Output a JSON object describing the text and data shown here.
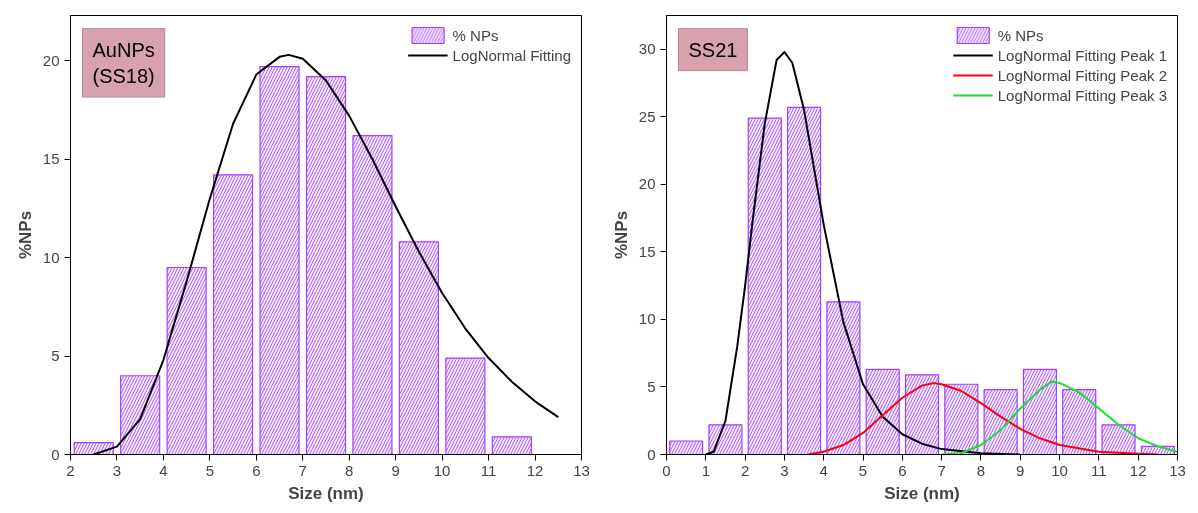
{
  "chart_data": [
    {
      "type": "histogram",
      "xlabel": "Size (nm)",
      "ylabel": "%NPs",
      "annotations": [
        "AuNPs\n(SS18)"
      ],
      "xlim": [
        2,
        13
      ],
      "xticks": [
        2,
        3,
        4,
        5,
        6,
        7,
        8,
        9,
        10,
        11,
        12,
        13
      ],
      "ylim": [
        0,
        22.3
      ],
      "yticks": [
        0,
        5,
        10,
        15,
        20
      ],
      "grid": false,
      "legend": "top right",
      "series": [
        {
          "name": "% NPs",
          "type": "histogram",
          "color": "#a040ff",
          "bins": [
            2,
            3,
            4,
            5,
            6,
            7,
            8,
            9,
            10,
            11,
            12
          ],
          "values": [
            0.6,
            4.0,
            9.5,
            14.2,
            19.7,
            19.2,
            16.2,
            10.8,
            4.9,
            0.9
          ]
        },
        {
          "name": "LogNormal Fitting",
          "type": "line",
          "color": "#000000",
          "x": [
            2.5,
            3,
            3.5,
            4,
            4.5,
            5,
            5.5,
            6,
            6.5,
            6.7,
            7,
            7.5,
            8,
            8.5,
            9,
            9.5,
            10,
            10.5,
            11,
            11.5,
            12,
            12.5
          ],
          "values": [
            0,
            0.4,
            1.8,
            4.8,
            8.8,
            13,
            16.8,
            19.3,
            20.2,
            20.3,
            20.1,
            19.0,
            17.2,
            15.0,
            12.6,
            10.3,
            8.2,
            6.4,
            4.9,
            3.7,
            2.7,
            1.9
          ]
        }
      ]
    },
    {
      "type": "histogram",
      "xlabel": "Size (nm)",
      "ylabel": "%NPs",
      "annotations": [
        "SS21"
      ],
      "xlim": [
        0,
        13
      ],
      "xticks": [
        0,
        1,
        2,
        3,
        4,
        5,
        6,
        7,
        8,
        9,
        10,
        11,
        12,
        13
      ],
      "ylim": [
        0,
        32.5
      ],
      "yticks": [
        0,
        5,
        10,
        15,
        20,
        25,
        30
      ],
      "grid": false,
      "legend": "top right",
      "series": [
        {
          "name": "% NPs",
          "type": "histogram",
          "color": "#a040ff",
          "bins": [
            0,
            1,
            2,
            3,
            4,
            5,
            6,
            7,
            8,
            9,
            10,
            11,
            12,
            13
          ],
          "values": [
            1.0,
            2.2,
            24.9,
            25.7,
            11.3,
            6.3,
            5.9,
            5.2,
            4.8,
            6.3,
            4.8,
            2.2,
            0.6
          ]
        },
        {
          "name": "LogNormal Fitting Peak 1",
          "type": "line",
          "color": "#000000",
          "x": [
            1,
            1.2,
            1.5,
            1.8,
            2,
            2.2,
            2.5,
            2.8,
            3,
            3.2,
            3.5,
            4,
            4.5,
            5,
            5.5,
            6,
            6.5,
            7,
            8,
            9
          ],
          "values": [
            0,
            0.2,
            2.5,
            8,
            12.5,
            17.5,
            24.5,
            29.2,
            29.8,
            29,
            25.5,
            17,
            9.8,
            5.2,
            2.8,
            1.5,
            0.8,
            0.4,
            0.1,
            0
          ]
        },
        {
          "name": "LogNormal Fitting Peak 2",
          "type": "line",
          "color": "#ff0000",
          "x": [
            3.6,
            4,
            4.5,
            5,
            5.5,
            6,
            6.5,
            6.8,
            7,
            7.5,
            8,
            8.5,
            9,
            9.5,
            10,
            11,
            12,
            12.5
          ],
          "values": [
            0,
            0.2,
            0.7,
            1.6,
            2.9,
            4.2,
            5.1,
            5.3,
            5.2,
            4.7,
            3.8,
            2.8,
            1.9,
            1.2,
            0.7,
            0.2,
            0.05,
            0
          ]
        },
        {
          "name": "LogNormal Fitting Peak 3",
          "type": "line",
          "color": "#22dd22",
          "x": [
            7,
            7.5,
            8,
            8.5,
            9,
            9.5,
            9.8,
            10,
            10.5,
            11,
            11.5,
            12,
            12.5,
            13
          ],
          "values": [
            0,
            0.1,
            0.7,
            1.8,
            3.4,
            4.8,
            5.4,
            5.3,
            4.6,
            3.4,
            2.2,
            1.2,
            0.6,
            0.2
          ]
        }
      ]
    }
  ]
}
